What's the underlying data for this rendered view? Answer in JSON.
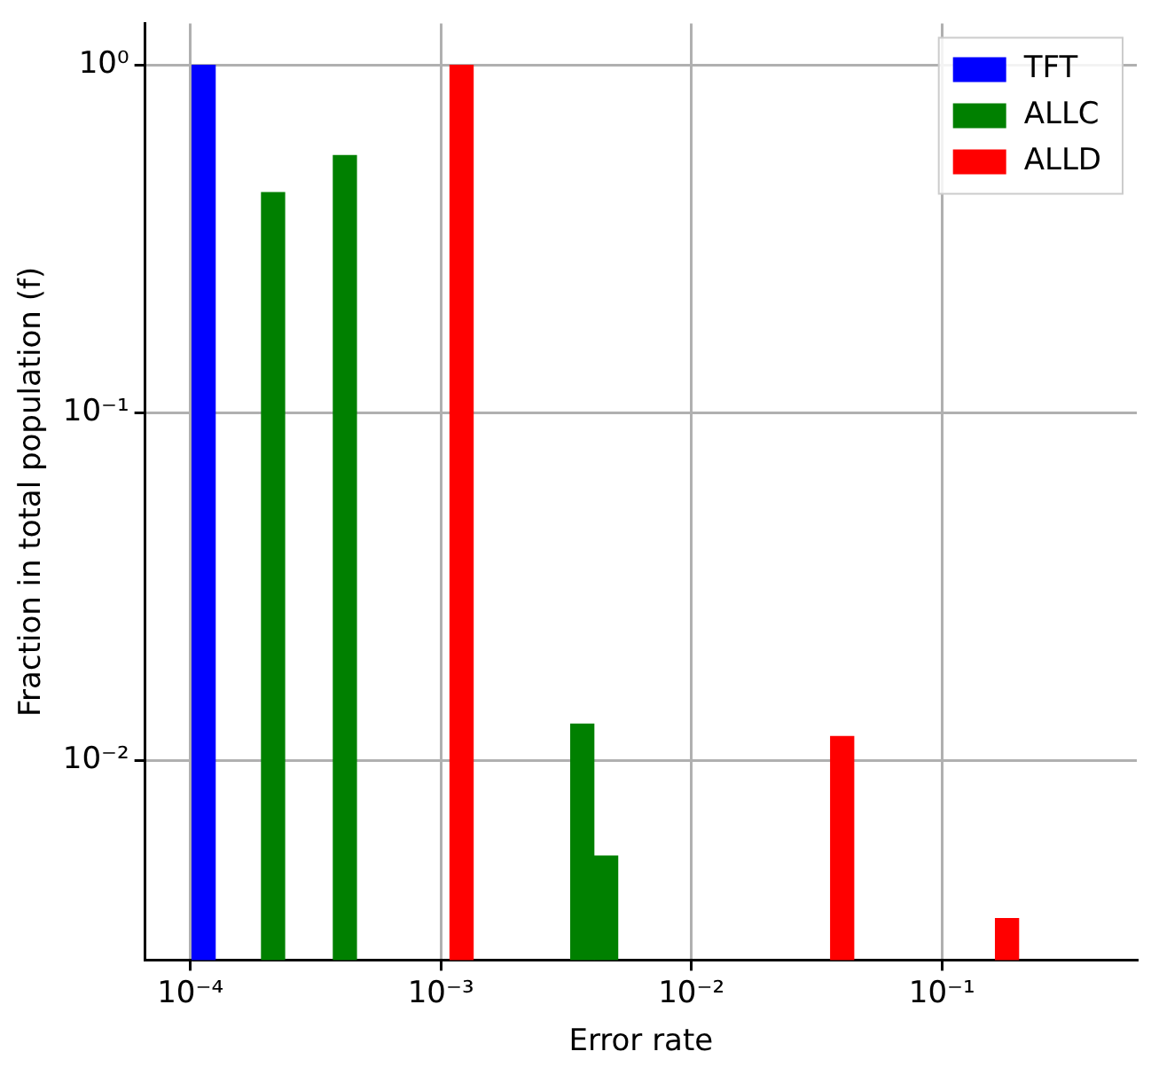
{
  "chart_data": {
    "type": "bar",
    "xlabel": "Error rate",
    "ylabel": "Fraction in total population (f)",
    "series": [
      {
        "name": "TFT",
        "color": "#0000ff",
        "x": [
          0.000113
        ],
        "values": [
          1.0
        ]
      },
      {
        "name": "ALLC",
        "color": "#008000",
        "x": [
          0.000214,
          0.000414,
          0.00367,
          0.00457
        ],
        "values": [
          0.43,
          0.55,
          0.0127,
          0.0053
        ]
      },
      {
        "name": "ALLD",
        "color": "#ff0000",
        "x": [
          0.00121,
          0.04,
          0.182
        ],
        "values": [
          1.0,
          0.0117,
          0.0035
        ]
      }
    ],
    "log": "xy",
    "xlim": [
      6.6e-05,
      0.6
    ],
    "ylim": [
      0.00266,
      1.32
    ],
    "xticks": [
      {
        "value": 0.0001,
        "label": "10⁻⁴"
      },
      {
        "value": 0.001,
        "label": "10⁻³"
      },
      {
        "value": 0.01,
        "label": "10⁻²"
      },
      {
        "value": 0.1,
        "label": "10⁻¹"
      }
    ],
    "yticks": [
      {
        "value": 0.01,
        "label": "10⁻²"
      },
      {
        "value": 0.1,
        "label": "10⁻¹"
      },
      {
        "value": 1,
        "label": "10⁰"
      }
    ],
    "grid": true,
    "legend": "top right"
  }
}
